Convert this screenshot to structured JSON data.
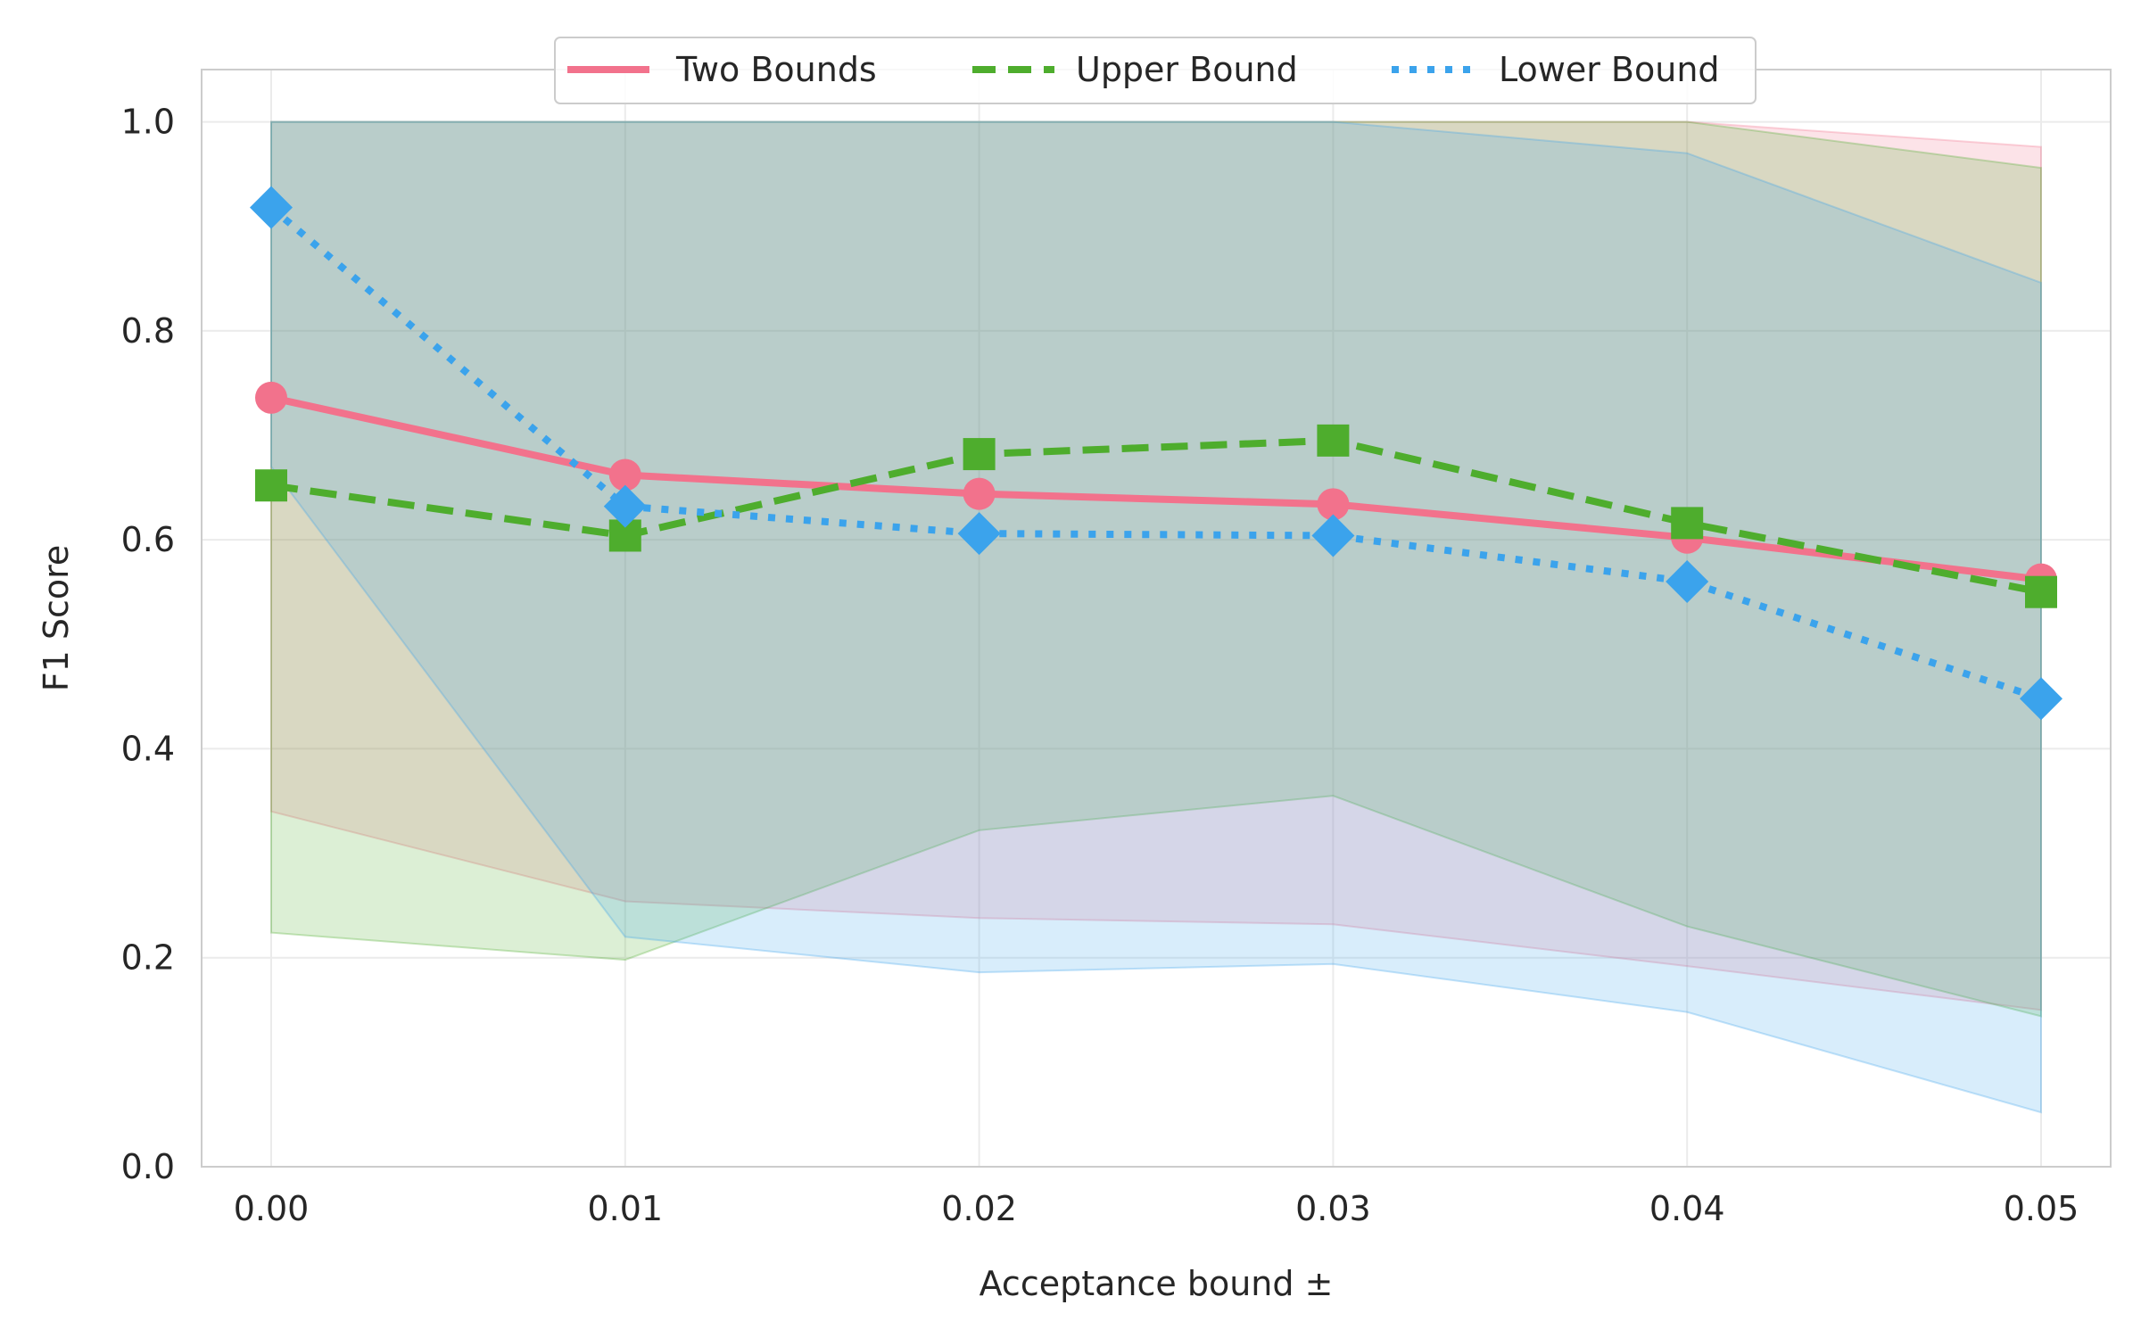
{
  "chart_data": {
    "type": "line",
    "title": "",
    "xlabel": "Acceptance bound ±",
    "ylabel": "F1 Score",
    "x": [
      0.0,
      0.01,
      0.02,
      0.03,
      0.04,
      0.05
    ],
    "x_tick_labels": [
      "0.00",
      "0.01",
      "0.02",
      "0.03",
      "0.04",
      "0.05"
    ],
    "y_ticks": [
      0.0,
      0.2,
      0.4,
      0.6,
      0.8,
      1.0
    ],
    "y_tick_labels": [
      "0.0",
      "0.2",
      "0.4",
      "0.6",
      "0.8",
      "1.0"
    ],
    "xlim": [
      -0.002,
      0.054
    ],
    "ylim": [
      0.0,
      1.05
    ],
    "grid": true,
    "legend_position": "top-center",
    "series": [
      {
        "name": "Two Bounds",
        "color": "#f2728c",
        "line_style": "solid",
        "marker": "circle",
        "values": [
          0.736,
          0.662,
          0.644,
          0.634,
          0.602,
          0.562
        ],
        "band_lower": [
          0.34,
          0.254,
          0.238,
          0.232,
          0.192,
          0.15
        ],
        "band_upper": [
          1.0,
          1.0,
          1.0,
          1.0,
          1.0,
          0.976
        ]
      },
      {
        "name": "Upper Bound",
        "color": "#4ead2d",
        "line_style": "dashed",
        "marker": "square",
        "values": [
          0.652,
          0.604,
          0.682,
          0.695,
          0.616,
          0.55
        ],
        "band_lower": [
          0.224,
          0.198,
          0.322,
          0.355,
          0.23,
          0.144
        ],
        "band_upper": [
          1.0,
          1.0,
          1.0,
          1.0,
          1.0,
          0.956
        ]
      },
      {
        "name": "Lower Bound",
        "color": "#3ba3ec",
        "line_style": "dotted",
        "marker": "diamond",
        "values": [
          0.918,
          0.632,
          0.606,
          0.604,
          0.56,
          0.448
        ],
        "band_lower": [
          0.67,
          0.22,
          0.186,
          0.194,
          0.148,
          0.052
        ],
        "band_upper": [
          1.0,
          1.0,
          1.0,
          1.0,
          0.97,
          0.846
        ]
      }
    ]
  }
}
